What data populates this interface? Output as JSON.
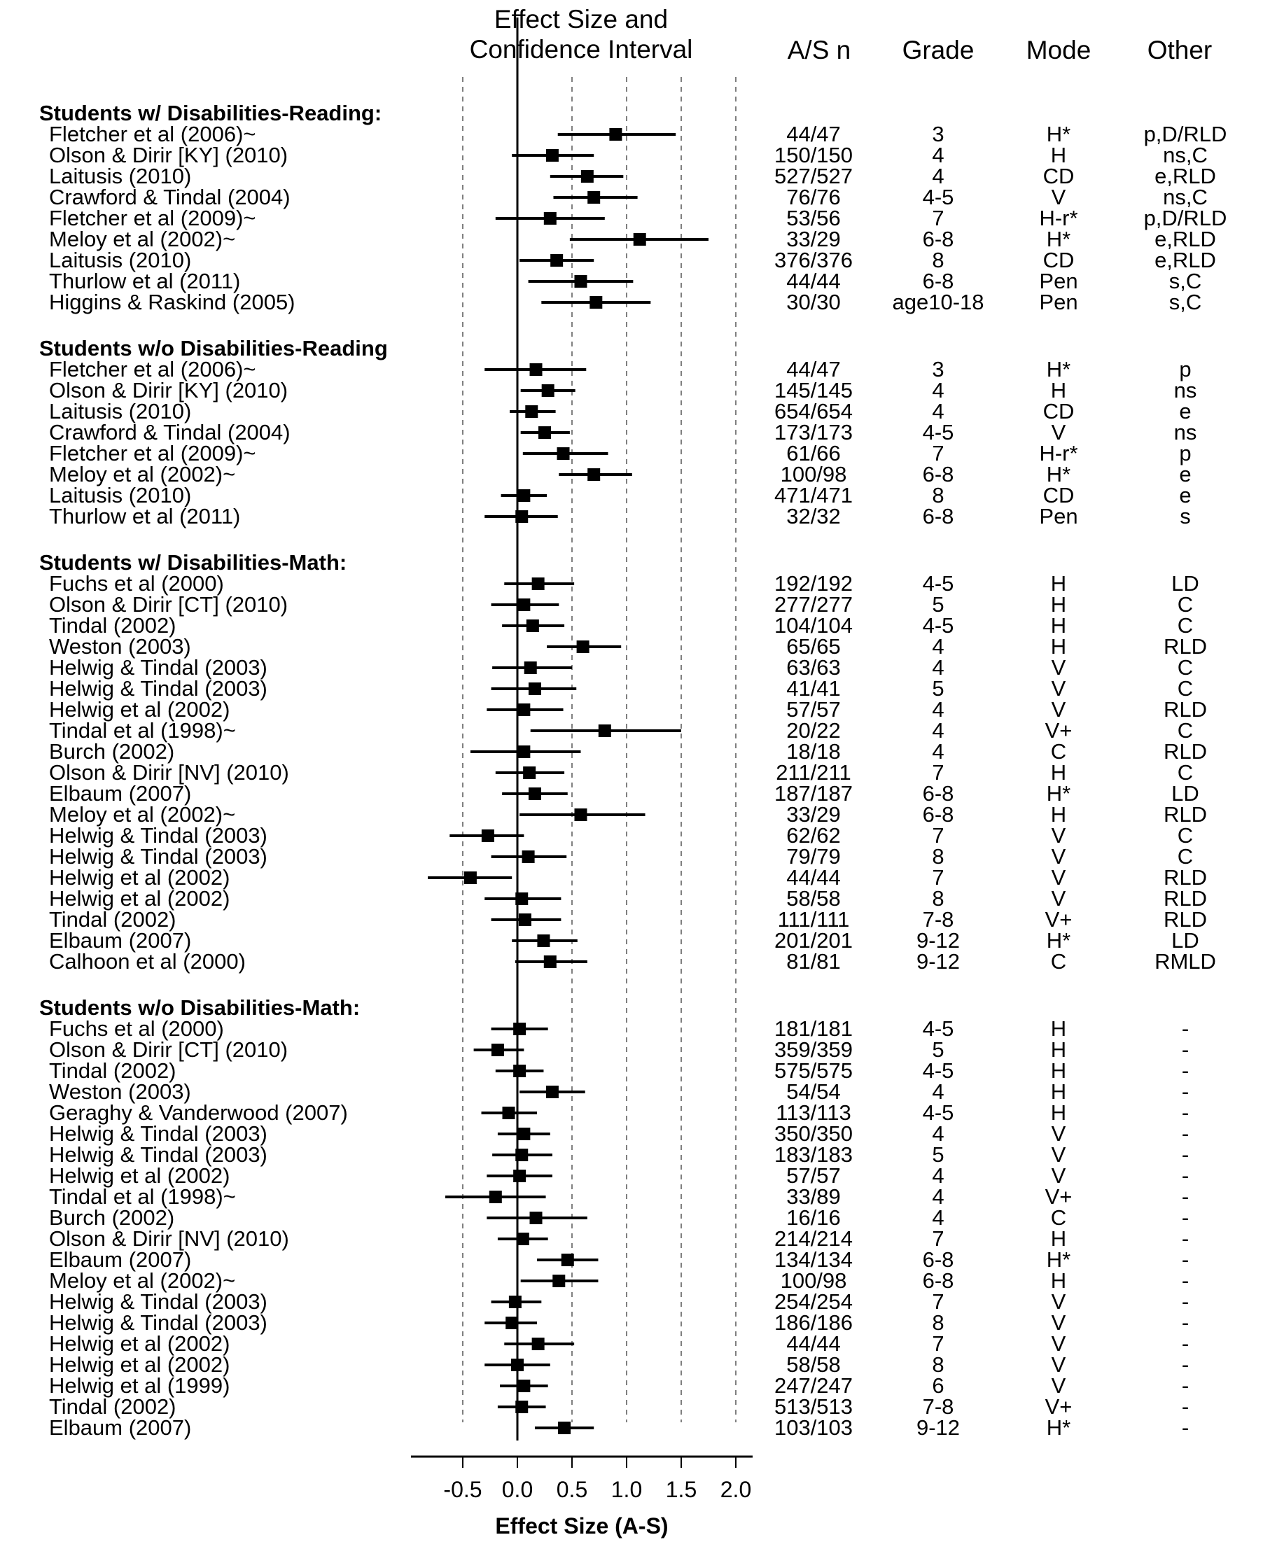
{
  "header": {
    "effect_line1": "Effect Size and",
    "effect_line2": "Confidence Interval",
    "asn": "A/S n",
    "grade": "Grade",
    "mode": "Mode",
    "other": "Other"
  },
  "x_axis": {
    "ticks": [
      "-0.5",
      "0.0",
      "0.5",
      "1.0",
      "1.5",
      "2.0"
    ],
    "title": "Effect Size (A-S)"
  },
  "chart_data": {
    "type": "forest",
    "xlim": [
      -1.0,
      2.0
    ],
    "reference_lines": [
      -0.5,
      0.5,
      1.0,
      1.5,
      2.0
    ],
    "groups": [
      {
        "title": "Students w/ Disabilities-Reading:",
        "rows": [
          {
            "study": "Fletcher et al (2006)~",
            "es": 0.9,
            "lo": 0.37,
            "hi": 1.45,
            "n": "44/47",
            "grade": "3",
            "mode": "H*",
            "other": "p,D/RLD"
          },
          {
            "study": "Olson & Dirir [KY] (2010)",
            "es": 0.32,
            "lo": -0.05,
            "hi": 0.7,
            "n": "150/150",
            "grade": "4",
            "mode": "H",
            "other": "ns,C"
          },
          {
            "study": "Laitusis (2010)",
            "es": 0.64,
            "lo": 0.3,
            "hi": 0.97,
            "n": "527/527",
            "grade": "4",
            "mode": "CD",
            "other": "e,RLD"
          },
          {
            "study": "Crawford & Tindal (2004)",
            "es": 0.7,
            "lo": 0.33,
            "hi": 1.1,
            "n": "76/76",
            "grade": "4-5",
            "mode": "V",
            "other": "ns,C"
          },
          {
            "study": "Fletcher et al (2009)~",
            "es": 0.3,
            "lo": -0.2,
            "hi": 0.8,
            "n": "53/56",
            "grade": "7",
            "mode": "H-r*",
            "other": "p,D/RLD"
          },
          {
            "study": "Meloy et al (2002)~",
            "es": 1.12,
            "lo": 0.48,
            "hi": 1.75,
            "n": "33/29",
            "grade": "6-8",
            "mode": "H*",
            "other": "e,RLD"
          },
          {
            "study": "Laitusis (2010)",
            "es": 0.36,
            "lo": 0.02,
            "hi": 0.7,
            "n": "376/376",
            "grade": "8",
            "mode": "CD",
            "other": "e,RLD"
          },
          {
            "study": "Thurlow et al (2011)",
            "es": 0.58,
            "lo": 0.1,
            "hi": 1.06,
            "n": "44/44",
            "grade": "6-8",
            "mode": "Pen",
            "other": "s,C"
          },
          {
            "study": "Higgins & Raskind (2005)",
            "es": 0.72,
            "lo": 0.22,
            "hi": 1.22,
            "n": "30/30",
            "grade": "age10-18",
            "mode": "Pen",
            "other": "s,C"
          }
        ]
      },
      {
        "title": "Students w/o Disabilities-Reading",
        "rows": [
          {
            "study": "Fletcher et al (2006)~",
            "es": 0.17,
            "lo": -0.3,
            "hi": 0.63,
            "n": "44/47",
            "grade": "3",
            "mode": "H*",
            "other": "p"
          },
          {
            "study": "Olson & Dirir [KY] (2010)",
            "es": 0.28,
            "lo": 0.03,
            "hi": 0.53,
            "n": "145/145",
            "grade": "4",
            "mode": "H",
            "other": "ns"
          },
          {
            "study": "Laitusis (2010)",
            "es": 0.13,
            "lo": -0.07,
            "hi": 0.35,
            "n": "654/654",
            "grade": "4",
            "mode": "CD",
            "other": "e"
          },
          {
            "study": "Crawford & Tindal (2004)",
            "es": 0.25,
            "lo": 0.03,
            "hi": 0.48,
            "n": "173/173",
            "grade": "4-5",
            "mode": "V",
            "other": "ns"
          },
          {
            "study": "Fletcher et al (2009)~",
            "es": 0.42,
            "lo": 0.05,
            "hi": 0.83,
            "n": "61/66",
            "grade": "7",
            "mode": "H-r*",
            "other": "p"
          },
          {
            "study": "Meloy et al (2002)~",
            "es": 0.7,
            "lo": 0.38,
            "hi": 1.05,
            "n": "100/98",
            "grade": "6-8",
            "mode": "H*",
            "other": "e"
          },
          {
            "study": "Laitusis (2010)",
            "es": 0.06,
            "lo": -0.15,
            "hi": 0.27,
            "n": "471/471",
            "grade": "8",
            "mode": "CD",
            "other": "e"
          },
          {
            "study": "Thurlow et al (2011)",
            "es": 0.04,
            "lo": -0.3,
            "hi": 0.37,
            "n": "32/32",
            "grade": "6-8",
            "mode": "Pen",
            "other": "s"
          }
        ]
      },
      {
        "title": "Students w/ Disabilities-Math:",
        "rows": [
          {
            "study": "Fuchs et al (2000)",
            "es": 0.19,
            "lo": -0.12,
            "hi": 0.52,
            "n": "192/192",
            "grade": "4-5",
            "mode": "H",
            "other": "LD"
          },
          {
            "study": "Olson & Dirir [CT] (2010)",
            "es": 0.06,
            "lo": -0.24,
            "hi": 0.38,
            "n": "277/277",
            "grade": "5",
            "mode": "H",
            "other": "C"
          },
          {
            "study": "Tindal (2002)",
            "es": 0.14,
            "lo": -0.14,
            "hi": 0.43,
            "n": "104/104",
            "grade": "4-5",
            "mode": "H",
            "other": "C"
          },
          {
            "study": "Weston (2003)",
            "es": 0.6,
            "lo": 0.27,
            "hi": 0.95,
            "n": "65/65",
            "grade": "4",
            "mode": "H",
            "other": "RLD"
          },
          {
            "study": "Helwig & Tindal (2003)",
            "es": 0.12,
            "lo": -0.23,
            "hi": 0.5,
            "n": "63/63",
            "grade": "4",
            "mode": "V",
            "other": "C"
          },
          {
            "study": "Helwig & Tindal (2003)",
            "es": 0.16,
            "lo": -0.24,
            "hi": 0.54,
            "n": "41/41",
            "grade": "5",
            "mode": "V",
            "other": "C"
          },
          {
            "study": "Helwig et al (2002)",
            "es": 0.06,
            "lo": -0.28,
            "hi": 0.42,
            "n": "57/57",
            "grade": "4",
            "mode": "V",
            "other": "RLD"
          },
          {
            "study": "Tindal et al (1998)~",
            "es": 0.8,
            "lo": 0.12,
            "hi": 1.5,
            "n": "20/22",
            "grade": "4",
            "mode": "V+",
            "other": "C"
          },
          {
            "study": "Burch (2002)",
            "es": 0.06,
            "lo": -0.43,
            "hi": 0.58,
            "n": "18/18",
            "grade": "4",
            "mode": "C",
            "other": "RLD"
          },
          {
            "study": "Olson & Dirir [NV] (2010)",
            "es": 0.11,
            "lo": -0.2,
            "hi": 0.43,
            "n": "211/211",
            "grade": "7",
            "mode": "H",
            "other": "C"
          },
          {
            "study": "Elbaum (2007)",
            "es": 0.16,
            "lo": -0.14,
            "hi": 0.46,
            "n": "187/187",
            "grade": "6-8",
            "mode": "H*",
            "other": "LD"
          },
          {
            "study": "Meloy et al (2002)~",
            "es": 0.58,
            "lo": 0.02,
            "hi": 1.17,
            "n": "33/29",
            "grade": "6-8",
            "mode": "H",
            "other": "RLD"
          },
          {
            "study": "Helwig & Tindal (2003)",
            "es": -0.27,
            "lo": -0.62,
            "hi": 0.06,
            "n": "62/62",
            "grade": "7",
            "mode": "V",
            "other": "C"
          },
          {
            "study": "Helwig & Tindal (2003)",
            "es": 0.1,
            "lo": -0.24,
            "hi": 0.45,
            "n": "79/79",
            "grade": "8",
            "mode": "V",
            "other": "C"
          },
          {
            "study": "Helwig et al (2002)",
            "es": -0.43,
            "lo": -0.82,
            "hi": -0.05,
            "n": "44/44",
            "grade": "7",
            "mode": "V",
            "other": "RLD"
          },
          {
            "study": "Helwig et al (2002)",
            "es": 0.04,
            "lo": -0.3,
            "hi": 0.4,
            "n": "58/58",
            "grade": "8",
            "mode": "V",
            "other": "RLD"
          },
          {
            "study": "Tindal (2002)",
            "es": 0.07,
            "lo": -0.24,
            "hi": 0.4,
            "n": "111/111",
            "grade": "7-8",
            "mode": "V+",
            "other": "RLD"
          },
          {
            "study": "Elbaum (2007)",
            "es": 0.24,
            "lo": -0.05,
            "hi": 0.55,
            "n": "201/201",
            "grade": "9-12",
            "mode": "H*",
            "other": "LD"
          },
          {
            "study": "Calhoon et al (2000)",
            "es": 0.3,
            "lo": -0.02,
            "hi": 0.64,
            "n": "81/81",
            "grade": "9-12",
            "mode": "C",
            "other": "RMLD"
          }
        ]
      },
      {
        "title": "Students w/o Disabilities-Math:",
        "rows": [
          {
            "study": "Fuchs et al (2000)",
            "es": 0.02,
            "lo": -0.24,
            "hi": 0.28,
            "n": "181/181",
            "grade": "4-5",
            "mode": "H",
            "other": "-"
          },
          {
            "study": "Olson & Dirir [CT] (2010)",
            "es": -0.18,
            "lo": -0.4,
            "hi": 0.06,
            "n": "359/359",
            "grade": "5",
            "mode": "H",
            "other": "-"
          },
          {
            "study": "Tindal (2002)",
            "es": 0.02,
            "lo": -0.2,
            "hi": 0.24,
            "n": "575/575",
            "grade": "4-5",
            "mode": "H",
            "other": "-"
          },
          {
            "study": "Weston (2003)",
            "es": 0.32,
            "lo": 0.02,
            "hi": 0.62,
            "n": "54/54",
            "grade": "4",
            "mode": "H",
            "other": "-"
          },
          {
            "study": "Geraghy & Vanderwood (2007)",
            "es": -0.08,
            "lo": -0.33,
            "hi": 0.18,
            "n": "113/113",
            "grade": "4-5",
            "mode": "H",
            "other": "-"
          },
          {
            "study": "Helwig & Tindal (2003)",
            "es": 0.06,
            "lo": -0.18,
            "hi": 0.3,
            "n": "350/350",
            "grade": "4",
            "mode": "V",
            "other": "-"
          },
          {
            "study": "Helwig & Tindal (2003)",
            "es": 0.04,
            "lo": -0.23,
            "hi": 0.32,
            "n": "183/183",
            "grade": "5",
            "mode": "V",
            "other": "-"
          },
          {
            "study": "Helwig et al (2002)",
            "es": 0.02,
            "lo": -0.28,
            "hi": 0.32,
            "n": "57/57",
            "grade": "4",
            "mode": "V",
            "other": "-"
          },
          {
            "study": "Tindal et al (1998)~",
            "es": -0.2,
            "lo": -0.66,
            "hi": 0.26,
            "n": "33/89",
            "grade": "4",
            "mode": "V+",
            "other": "-"
          },
          {
            "study": "Burch (2002)",
            "es": 0.17,
            "lo": -0.28,
            "hi": 0.64,
            "n": "16/16",
            "grade": "4",
            "mode": "C",
            "other": "-"
          },
          {
            "study": "Olson & Dirir [NV] (2010)",
            "es": 0.05,
            "lo": -0.18,
            "hi": 0.28,
            "n": "214/214",
            "grade": "7",
            "mode": "H",
            "other": "-"
          },
          {
            "study": "Elbaum (2007)",
            "es": 0.46,
            "lo": 0.18,
            "hi": 0.74,
            "n": "134/134",
            "grade": "6-8",
            "mode": "H*",
            "other": "-"
          },
          {
            "study": "Meloy et al (2002)~",
            "es": 0.38,
            "lo": 0.03,
            "hi": 0.74,
            "n": "100/98",
            "grade": "6-8",
            "mode": "H",
            "other": "-"
          },
          {
            "study": "Helwig & Tindal (2003)",
            "es": -0.02,
            "lo": -0.24,
            "hi": 0.22,
            "n": "254/254",
            "grade": "7",
            "mode": "V",
            "other": "-"
          },
          {
            "study": "Helwig & Tindal (2003)",
            "es": -0.05,
            "lo": -0.3,
            "hi": 0.18,
            "n": "186/186",
            "grade": "8",
            "mode": "V",
            "other": "-"
          },
          {
            "study": "Helwig et al (2002)",
            "es": 0.19,
            "lo": -0.12,
            "hi": 0.52,
            "n": "44/44",
            "grade": "7",
            "mode": "V",
            "other": "-"
          },
          {
            "study": "Helwig et al (2002)",
            "es": 0.0,
            "lo": -0.3,
            "hi": 0.3,
            "n": "58/58",
            "grade": "8",
            "mode": "V",
            "other": "-"
          },
          {
            "study": "Helwig et al (1999)",
            "es": 0.06,
            "lo": -0.16,
            "hi": 0.28,
            "n": "247/247",
            "grade": "6",
            "mode": "V",
            "other": "-"
          },
          {
            "study": "Tindal (2002)",
            "es": 0.04,
            "lo": -0.18,
            "hi": 0.26,
            "n": "513/513",
            "grade": "7-8",
            "mode": "V+",
            "other": "-"
          },
          {
            "study": "Elbaum (2007)",
            "es": 0.43,
            "lo": 0.16,
            "hi": 0.7,
            "n": "103/103",
            "grade": "9-12",
            "mode": "H*",
            "other": "-"
          }
        ]
      }
    ]
  }
}
